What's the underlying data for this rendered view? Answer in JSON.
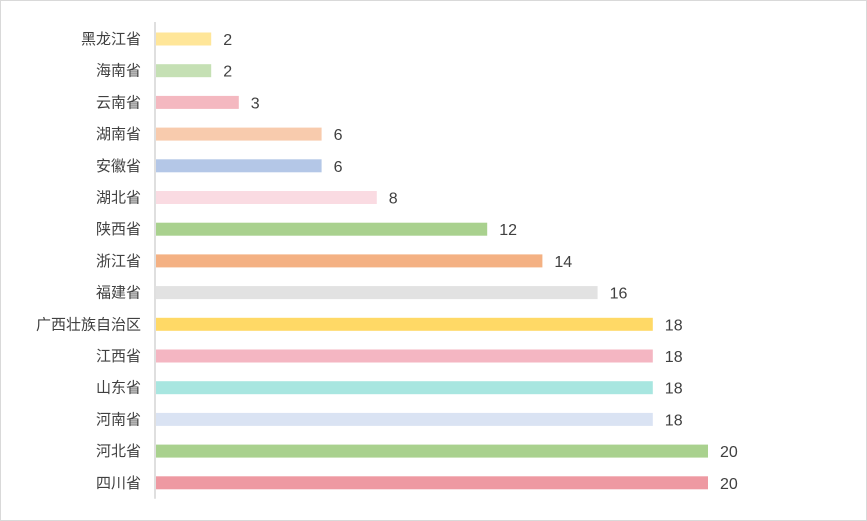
{
  "chart_data": {
    "type": "bar",
    "orientation": "horizontal",
    "title": "",
    "xlabel": "",
    "ylabel": "",
    "xlim": [
      0,
      20
    ],
    "grid": false,
    "legend": "none",
    "data_labels": true,
    "categories": [
      "黑龙江省",
      "海南省",
      "云南省",
      "湖南省",
      "安徽省",
      "湖北省",
      "陕西省",
      "浙江省",
      "福建省",
      "广西壮族自治区",
      "江西省",
      "山东省",
      "河南省",
      "河北省",
      "四川省"
    ],
    "values": [
      2,
      2,
      3,
      6,
      6,
      8,
      12,
      14,
      16,
      18,
      18,
      18,
      18,
      20,
      20
    ],
    "colors": [
      "#FFE699",
      "#C5E0B4",
      "#F4B8C0",
      "#F8CBAD",
      "#B4C7E7",
      "#FADBE2",
      "#A9D18E",
      "#F4B183",
      "#E2E2E2",
      "#FFD966",
      "#F4B6C2",
      "#A8E6E0",
      "#DAE3F3",
      "#A9D18E",
      "#EE99A2"
    ]
  }
}
